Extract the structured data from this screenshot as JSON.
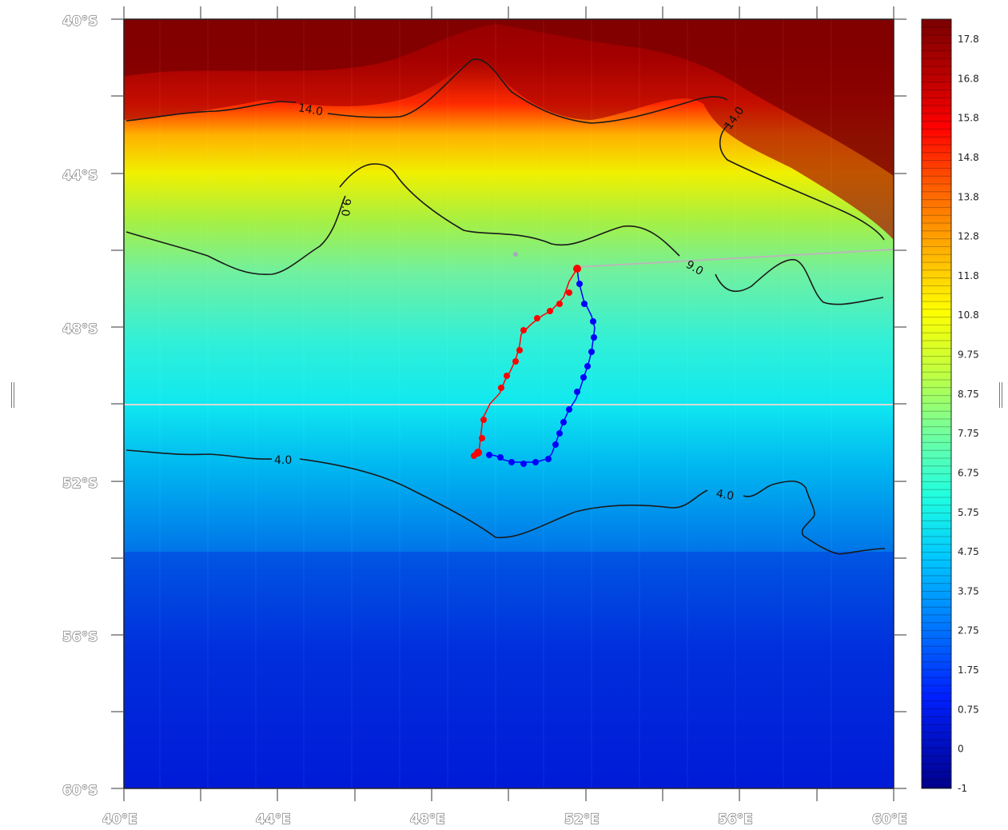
{
  "map": {
    "lat_labels": [
      "40°S",
      "44°S",
      "48°S",
      "52°S",
      "56°S",
      "60°S"
    ],
    "lon_labels": [
      "40°E",
      "44°E",
      "48°E",
      "52°E",
      "56°E",
      "60°E"
    ],
    "lon_range": [
      40,
      60
    ],
    "lat_range": [
      -40,
      -60
    ]
  },
  "contours": [
    {
      "level": "14.0",
      "labels": [
        "14.0",
        "14.0"
      ]
    },
    {
      "level": "9.0",
      "labels": [
        "9.0",
        "9.0"
      ]
    },
    {
      "level": "4.0",
      "labels": [
        "4.0",
        "4.0"
      ]
    }
  ],
  "colorbar": {
    "ticks": [
      "17.8",
      "16.8",
      "15.8",
      "14.8",
      "13.8",
      "12.8",
      "11.8",
      "10.8",
      "9.75",
      "8.75",
      "7.75",
      "6.75",
      "5.75",
      "4.75",
      "3.75",
      "2.75",
      "1.75",
      "0.75",
      "0",
      "-1"
    ],
    "colors": {
      "dark_red": "#7a0000",
      "red": "#ff0000",
      "orange": "#ff8c00",
      "yellow": "#ffff00",
      "green": "#7fff7f",
      "cyan": "#00ffff",
      "sky": "#0096ff",
      "blue": "#0000ff",
      "navy": "#00008b"
    }
  },
  "tracks": {
    "red_track_color": "#ff0000",
    "blue_track_color": "#0000ff"
  }
}
